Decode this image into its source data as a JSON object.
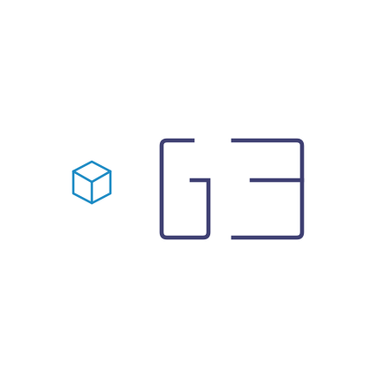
{
  "logo": {
    "wordmark": "G3",
    "icon": "cube-icon",
    "colors": {
      "icon": "#1b8ac4",
      "wordmark": "#3e3f72",
      "background": "#ffffff"
    }
  }
}
